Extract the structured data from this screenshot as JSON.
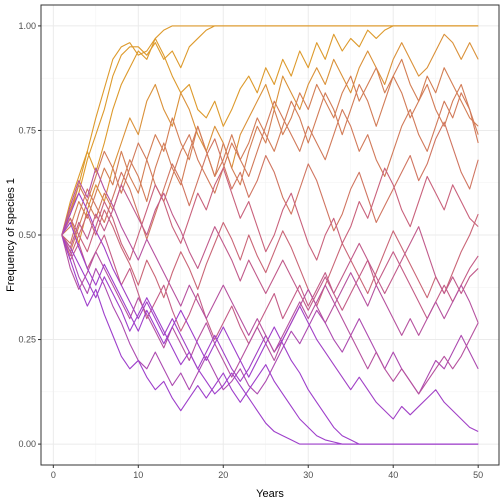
{
  "chart_data": {
    "type": "line",
    "title": "",
    "xlabel": "Years",
    "ylabel": "Frequency of species 1",
    "xlim": [
      -1.45,
      52.45
    ],
    "ylim": [
      -0.05,
      1.05
    ],
    "x_ticks": [
      0,
      10,
      20,
      30,
      40,
      50
    ],
    "x_tick_labels": [
      "0",
      "10",
      "20",
      "30",
      "40",
      "50"
    ],
    "y_ticks": [
      0,
      0.25,
      0.5,
      0.75,
      1
    ],
    "y_tick_labels": [
      "0.00",
      "0.25",
      "0.50",
      "0.75",
      "1.00"
    ],
    "grid": true,
    "legend": "none",
    "color_scale": {
      "low": "#9e3fcb",
      "mid": "#c8607f",
      "high": "#dd9a2c"
    },
    "x": [
      1,
      2,
      3,
      4,
      5,
      6,
      7,
      8,
      9,
      10,
      11,
      12,
      13,
      14,
      15,
      16,
      17,
      18,
      19,
      20,
      21,
      22,
      23,
      24,
      25,
      26,
      27,
      28,
      29,
      30,
      31,
      32,
      33,
      34,
      35,
      36,
      37,
      38,
      39,
      40,
      41,
      42,
      43,
      44,
      45,
      46,
      47,
      48,
      49,
      50
    ],
    "series": [
      {
        "values": [
          0.5,
          0.55,
          0.62,
          0.7,
          0.78,
          0.85,
          0.92,
          0.95,
          0.96,
          0.93,
          0.94,
          0.97,
          0.99,
          1,
          1,
          1,
          1,
          1,
          1,
          1,
          1,
          1,
          1,
          1,
          1,
          1,
          1,
          1,
          1,
          1,
          1,
          1,
          1,
          1,
          1,
          1,
          1,
          1,
          1,
          1,
          1,
          1,
          1,
          1,
          1,
          1,
          1,
          1,
          1,
          1
        ]
      },
      {
        "values": [
          0.5,
          0.56,
          0.6,
          0.68,
          0.74,
          0.8,
          0.88,
          0.93,
          0.95,
          0.95,
          0.93,
          0.96,
          0.92,
          0.94,
          0.9,
          0.95,
          0.97,
          0.99,
          1,
          1,
          1,
          1,
          1,
          1,
          1,
          1,
          1,
          1,
          1,
          1,
          1,
          1,
          1,
          1,
          1,
          1,
          1,
          1,
          1,
          1,
          1,
          1,
          1,
          1,
          1,
          1,
          1,
          1,
          1,
          1
        ]
      },
      {
        "values": [
          0.5,
          0.58,
          0.64,
          0.7,
          0.65,
          0.72,
          0.8,
          0.86,
          0.9,
          0.94,
          0.92,
          0.97,
          0.93,
          0.88,
          0.84,
          0.86,
          0.8,
          0.78,
          0.82,
          0.76,
          0.8,
          0.85,
          0.88,
          0.84,
          0.9,
          0.86,
          0.92,
          0.88,
          0.94,
          0.9,
          0.96,
          0.92,
          0.98,
          0.94,
          0.97,
          0.95,
          0.99,
          0.97,
          0.99,
          1,
          1,
          1,
          1,
          1,
          1,
          1,
          1,
          1,
          1,
          1
        ]
      },
      {
        "values": [
          0.5,
          0.54,
          0.48,
          0.56,
          0.62,
          0.58,
          0.66,
          0.72,
          0.78,
          0.74,
          0.82,
          0.86,
          0.8,
          0.76,
          0.84,
          0.8,
          0.74,
          0.7,
          0.76,
          0.72,
          0.66,
          0.74,
          0.78,
          0.82,
          0.86,
          0.8,
          0.88,
          0.84,
          0.8,
          0.86,
          0.9,
          0.86,
          0.92,
          0.88,
          0.84,
          0.9,
          0.94,
          0.9,
          0.86,
          0.92,
          0.96,
          0.92,
          0.88,
          0.9,
          0.94,
          0.98,
          0.96,
          0.92,
          0.96,
          0.92
        ]
      },
      {
        "values": [
          0.5,
          0.52,
          0.58,
          0.54,
          0.6,
          0.66,
          0.62,
          0.7,
          0.64,
          0.6,
          0.68,
          0.74,
          0.7,
          0.78,
          0.72,
          0.68,
          0.76,
          0.7,
          0.64,
          0.72,
          0.66,
          0.62,
          0.7,
          0.76,
          0.72,
          0.8,
          0.74,
          0.78,
          0.84,
          0.8,
          0.86,
          0.82,
          0.78,
          0.84,
          0.88,
          0.82,
          0.86,
          0.9,
          0.84,
          0.88,
          0.92,
          0.86,
          0.82,
          0.88,
          0.84,
          0.9,
          0.86,
          0.82,
          0.78,
          0.76
        ]
      },
      {
        "values": [
          0.5,
          0.46,
          0.52,
          0.58,
          0.54,
          0.6,
          0.56,
          0.62,
          0.68,
          0.64,
          0.58,
          0.66,
          0.72,
          0.66,
          0.62,
          0.7,
          0.76,
          0.7,
          0.64,
          0.68,
          0.74,
          0.68,
          0.72,
          0.78,
          0.74,
          0.7,
          0.76,
          0.82,
          0.78,
          0.72,
          0.78,
          0.84,
          0.8,
          0.74,
          0.8,
          0.86,
          0.82,
          0.76,
          0.82,
          0.88,
          0.84,
          0.78,
          0.82,
          0.86,
          0.8,
          0.76,
          0.82,
          0.86,
          0.8,
          0.74
        ]
      },
      {
        "values": [
          0.5,
          0.56,
          0.62,
          0.58,
          0.64,
          0.7,
          0.66,
          0.6,
          0.66,
          0.72,
          0.68,
          0.62,
          0.58,
          0.64,
          0.7,
          0.74,
          0.68,
          0.64,
          0.6,
          0.66,
          0.72,
          0.68,
          0.64,
          0.7,
          0.76,
          0.82,
          0.78,
          0.74,
          0.7,
          0.76,
          0.72,
          0.68,
          0.74,
          0.8,
          0.76,
          0.7,
          0.74,
          0.68,
          0.64,
          0.7,
          0.76,
          0.8,
          0.74,
          0.7,
          0.76,
          0.82,
          0.78,
          0.84,
          0.8,
          0.72
        ]
      },
      {
        "values": [
          0.5,
          0.48,
          0.55,
          0.61,
          0.57,
          0.53,
          0.59,
          0.65,
          0.61,
          0.55,
          0.49,
          0.55,
          0.61,
          0.67,
          0.63,
          0.57,
          0.63,
          0.69,
          0.73,
          0.67,
          0.61,
          0.65,
          0.59,
          0.63,
          0.69,
          0.65,
          0.59,
          0.55,
          0.61,
          0.67,
          0.63,
          0.57,
          0.51,
          0.55,
          0.61,
          0.65,
          0.59,
          0.53,
          0.57,
          0.61,
          0.65,
          0.69,
          0.63,
          0.67,
          0.73,
          0.77,
          0.71,
          0.65,
          0.61,
          0.68
        ]
      },
      {
        "values": [
          0.5,
          0.54,
          0.5,
          0.46,
          0.52,
          0.58,
          0.54,
          0.48,
          0.44,
          0.5,
          0.56,
          0.62,
          0.58,
          0.52,
          0.48,
          0.54,
          0.6,
          0.56,
          0.62,
          0.66,
          0.6,
          0.54,
          0.58,
          0.52,
          0.46,
          0.5,
          0.56,
          0.6,
          0.54,
          0.48,
          0.44,
          0.5,
          0.54,
          0.48,
          0.52,
          0.58,
          0.54,
          0.6,
          0.66,
          0.62,
          0.56,
          0.52,
          0.58,
          0.64,
          0.6,
          0.56,
          0.62,
          0.58,
          0.54,
          0.52
        ]
      },
      {
        "values": [
          0.5,
          0.45,
          0.5,
          0.55,
          0.5,
          0.56,
          0.52,
          0.47,
          0.43,
          0.38,
          0.44,
          0.4,
          0.35,
          0.41,
          0.46,
          0.42,
          0.37,
          0.43,
          0.48,
          0.53,
          0.49,
          0.44,
          0.5,
          0.45,
          0.41,
          0.46,
          0.51,
          0.47,
          0.42,
          0.37,
          0.33,
          0.38,
          0.43,
          0.48,
          0.44,
          0.4,
          0.36,
          0.41,
          0.46,
          0.51,
          0.47,
          0.43,
          0.39,
          0.35,
          0.4,
          0.36,
          0.41,
          0.46,
          0.5,
          0.55
        ]
      },
      {
        "values": [
          0.5,
          0.44,
          0.48,
          0.42,
          0.46,
          0.5,
          0.44,
          0.38,
          0.42,
          0.36,
          0.3,
          0.34,
          0.38,
          0.32,
          0.27,
          0.31,
          0.36,
          0.3,
          0.25,
          0.29,
          0.33,
          0.28,
          0.24,
          0.28,
          0.32,
          0.36,
          0.3,
          0.34,
          0.38,
          0.33,
          0.37,
          0.41,
          0.36,
          0.32,
          0.36,
          0.4,
          0.44,
          0.38,
          0.42,
          0.46,
          0.42,
          0.38,
          0.34,
          0.3,
          0.34,
          0.38,
          0.34,
          0.38,
          0.42,
          0.45
        ]
      },
      {
        "values": [
          0.5,
          0.42,
          0.37,
          0.41,
          0.46,
          0.42,
          0.38,
          0.34,
          0.3,
          0.35,
          0.31,
          0.27,
          0.23,
          0.28,
          0.24,
          0.2,
          0.25,
          0.29,
          0.24,
          0.2,
          0.16,
          0.2,
          0.24,
          0.28,
          0.24,
          0.2,
          0.25,
          0.29,
          0.33,
          0.37,
          0.33,
          0.29,
          0.33,
          0.37,
          0.41,
          0.37,
          0.33,
          0.38,
          0.34,
          0.3,
          0.26,
          0.3,
          0.26,
          0.3,
          0.34,
          0.3,
          0.34,
          0.38,
          0.34,
          0.29
        ]
      },
      {
        "values": [
          0.5,
          0.46,
          0.4,
          0.36,
          0.42,
          0.38,
          0.33,
          0.29,
          0.24,
          0.2,
          0.18,
          0.22,
          0.18,
          0.14,
          0.17,
          0.13,
          0.17,
          0.21,
          0.17,
          0.13,
          0.15,
          0.18,
          0.14,
          0.12,
          0.15,
          0.19,
          0.23,
          0.27,
          0.24,
          0.28,
          0.32,
          0.29,
          0.25,
          0.22,
          0.26,
          0.3,
          0.26,
          0.22,
          0.18,
          0.22,
          0.18,
          0.15,
          0.12,
          0.16,
          0.2,
          0.18,
          0.22,
          0.26,
          0.22,
          0.18
        ]
      },
      {
        "values": [
          0.5,
          0.44,
          0.38,
          0.33,
          0.37,
          0.31,
          0.26,
          0.21,
          0.18,
          0.2,
          0.16,
          0.13,
          0.15,
          0.11,
          0.08,
          0.11,
          0.14,
          0.11,
          0.14,
          0.17,
          0.13,
          0.1,
          0.13,
          0.16,
          0.19,
          0.15,
          0.12,
          0.09,
          0.06,
          0.04,
          0.02,
          0.01,
          0.005,
          0,
          0,
          0,
          0,
          0,
          0,
          0,
          0,
          0,
          0,
          0,
          0,
          0,
          0,
          0,
          0,
          0
        ]
      },
      {
        "values": [
          0.5,
          0.47,
          0.43,
          0.39,
          0.35,
          0.4,
          0.36,
          0.32,
          0.27,
          0.31,
          0.35,
          0.31,
          0.27,
          0.23,
          0.19,
          0.22,
          0.18,
          0.15,
          0.12,
          0.14,
          0.17,
          0.14,
          0.11,
          0.08,
          0.05,
          0.03,
          0.02,
          0.01,
          0,
          0,
          0,
          0,
          0,
          0,
          0,
          0,
          0,
          0,
          0,
          0,
          0,
          0,
          0,
          0,
          0,
          0,
          0,
          0,
          0,
          0
        ]
      },
      {
        "values": [
          0.5,
          0.53,
          0.47,
          0.42,
          0.38,
          0.43,
          0.39,
          0.35,
          0.31,
          0.27,
          0.32,
          0.28,
          0.24,
          0.28,
          0.32,
          0.28,
          0.24,
          0.2,
          0.24,
          0.28,
          0.24,
          0.2,
          0.16,
          0.2,
          0.24,
          0.28,
          0.24,
          0.2,
          0.17,
          0.13,
          0.1,
          0.07,
          0.04,
          0.02,
          0.01,
          0,
          0,
          0,
          0,
          0,
          0,
          0,
          0,
          0,
          0,
          0,
          0,
          0,
          0,
          0
        ]
      },
      {
        "values": [
          0.5,
          0.55,
          0.6,
          0.56,
          0.51,
          0.47,
          0.42,
          0.38,
          0.34,
          0.3,
          0.34,
          0.3,
          0.26,
          0.3,
          0.26,
          0.22,
          0.18,
          0.22,
          0.26,
          0.22,
          0.18,
          0.15,
          0.18,
          0.22,
          0.26,
          0.22,
          0.25,
          0.29,
          0.33,
          0.29,
          0.25,
          0.22,
          0.19,
          0.16,
          0.13,
          0.16,
          0.13,
          0.1,
          0.08,
          0.06,
          0.09,
          0.07,
          0.09,
          0.11,
          0.13,
          0.1,
          0.08,
          0.06,
          0.04,
          0.03
        ]
      },
      {
        "values": [
          0.5,
          0.57,
          0.63,
          0.59,
          0.66,
          0.61,
          0.57,
          0.52,
          0.48,
          0.44,
          0.49,
          0.45,
          0.41,
          0.37,
          0.33,
          0.38,
          0.34,
          0.3,
          0.34,
          0.38,
          0.34,
          0.3,
          0.26,
          0.3,
          0.26,
          0.22,
          0.26,
          0.3,
          0.34,
          0.3,
          0.34,
          0.38,
          0.34,
          0.3,
          0.26,
          0.22,
          0.18,
          0.22,
          0.18,
          0.15,
          0.18,
          0.15,
          0.12,
          0.15,
          0.18,
          0.21,
          0.18,
          0.21,
          0.25,
          0.29
        ]
      },
      {
        "values": [
          0.5,
          0.47,
          0.53,
          0.49,
          0.55,
          0.51,
          0.56,
          0.62,
          0.58,
          0.54,
          0.5,
          0.56,
          0.6,
          0.55,
          0.51,
          0.46,
          0.42,
          0.47,
          0.52,
          0.48,
          0.44,
          0.39,
          0.44,
          0.4,
          0.36,
          0.4,
          0.44,
          0.4,
          0.36,
          0.32,
          0.36,
          0.4,
          0.36,
          0.4,
          0.44,
          0.48,
          0.44,
          0.4,
          0.36,
          0.4,
          0.44,
          0.48,
          0.52,
          0.46,
          0.4,
          0.36,
          0.4,
          0.36,
          0.4,
          0.42
        ]
      }
    ]
  }
}
